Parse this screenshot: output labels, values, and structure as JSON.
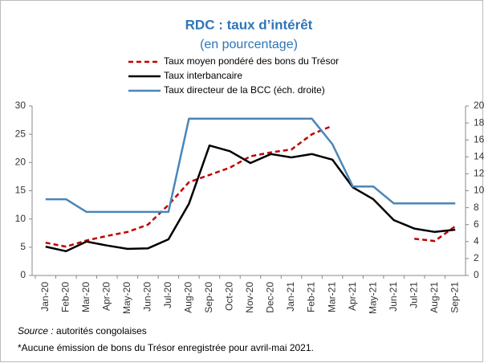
{
  "chart_data": {
    "type": "line",
    "title": "RDC : taux d’intérêt",
    "subtitle": "(en pourcentage)",
    "categories": [
      "Jan-20",
      "Feb-20",
      "Mar-20",
      "Apr-20",
      "May-20",
      "Jun-20",
      "Jul-20",
      "Aug-20",
      "Sep-20",
      "Oct-20",
      "Nov-20",
      "Dec-20",
      "Jan-21",
      "Feb-21",
      "Mar-21",
      "Apr-21",
      "May-21",
      "Jun-21",
      "Jul-21",
      "Aug-21",
      "Sep-21"
    ],
    "series": [
      {
        "name": "Taux moyen pondéré des bons du Trésor",
        "color": "#c00000",
        "dashed": true,
        "values": [
          5.8,
          5.1,
          6.2,
          7.0,
          7.7,
          9.0,
          12.5,
          16.5,
          17.8,
          19.1,
          21.1,
          21.8,
          22.3,
          25.0,
          26.5,
          null,
          null,
          null,
          6.5,
          6.1,
          8.7
        ]
      },
      {
        "name": "Taux interbancaire",
        "color": "#000000",
        "values": [
          5.1,
          4.3,
          6.0,
          5.3,
          4.7,
          4.8,
          6.4,
          12.7,
          23.0,
          22.0,
          19.9,
          21.5,
          20.9,
          21.5,
          20.5,
          15.6,
          13.5,
          9.8,
          8.3,
          7.7,
          8.1
        ]
      },
      {
        "name": "Taux directeur de la BCC (éch. droite)",
        "color": "#4a86b8",
        "axis": "y2",
        "values": [
          9,
          9,
          7.5,
          7.5,
          7.5,
          7.5,
          7.5,
          18.5,
          18.5,
          18.5,
          18.5,
          18.5,
          18.5,
          18.5,
          15.5,
          10.5,
          10.5,
          8.5,
          8.5,
          8.5,
          8.5
        ]
      }
    ],
    "ylim": [
      0,
      30
    ],
    "yticks": [
      0,
      5,
      10,
      15,
      20,
      25,
      30
    ],
    "y2lim": [
      0,
      20
    ],
    "y2ticks": [
      0,
      2,
      4,
      6,
      8,
      10,
      12,
      14,
      16,
      18,
      20
    ],
    "source_label": "Source :",
    "source_text": "autorités congolaises",
    "note": "*Aucune émission de bons du Trésor enregistrée pour avril-mai 2021."
  }
}
